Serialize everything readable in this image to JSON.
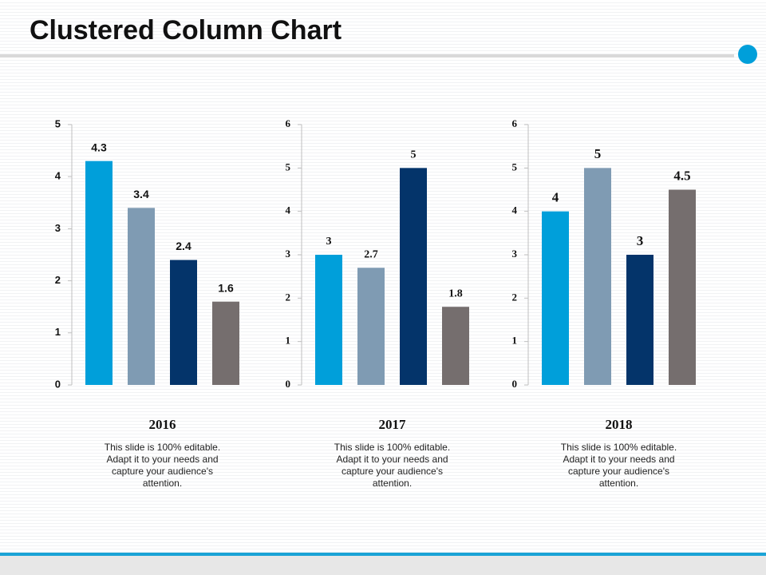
{
  "title": "Clustered Column Chart",
  "chart_data": [
    {
      "type": "bar",
      "title": "2016",
      "caption": "This slide is 100% editable. Adapt it to your needs and capture your audience's attention.",
      "categories": [
        null,
        null,
        null,
        null
      ],
      "values": [
        4.3,
        3.4,
        2.4,
        1.6
      ],
      "colors": [
        "#009fda",
        "#7f9bb3",
        "#04346a",
        "#756e6e"
      ],
      "ylim": [
        0,
        5
      ],
      "yticks": [
        0,
        1,
        2,
        3,
        4,
        5
      ],
      "grid": false
    },
    {
      "type": "bar",
      "title": "2017",
      "caption": "This slide is 100% editable. Adapt it to your needs and capture your audience's attention.",
      "categories": [
        null,
        null,
        null,
        null
      ],
      "values": [
        3,
        2.7,
        5,
        1.8
      ],
      "colors": [
        "#009fda",
        "#7f9bb3",
        "#04346a",
        "#756e6e"
      ],
      "ylim": [
        0,
        6
      ],
      "yticks": [
        0,
        1,
        2,
        3,
        4,
        5,
        6
      ],
      "grid": false
    },
    {
      "type": "bar",
      "title": "2018",
      "caption": "This slide is 100% editable. Adapt it to your needs and capture your audience's attention.",
      "categories": [
        null,
        null,
        null,
        null
      ],
      "values": [
        4,
        5,
        3,
        4.5
      ],
      "colors": [
        "#009fda",
        "#7f9bb3",
        "#04346a",
        "#756e6e"
      ],
      "ylim": [
        0,
        6
      ],
      "yticks": [
        0,
        1,
        2,
        3,
        4,
        5,
        6
      ],
      "grid": false
    }
  ]
}
